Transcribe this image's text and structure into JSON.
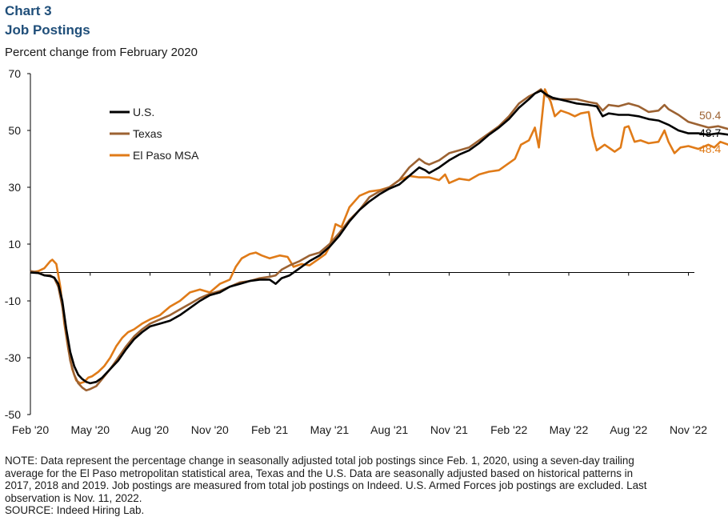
{
  "header": {
    "chart_label": "Chart 3",
    "title": "Job Postings",
    "subtitle": "Percent change from February 2020"
  },
  "chart_data": {
    "type": "line",
    "title": "Job Postings",
    "subtitle": "Percent change from February 2020",
    "xlabel": "",
    "ylabel": "",
    "ylim": [
      -50,
      70
    ],
    "y_ticks": [
      -50,
      -30,
      -10,
      10,
      30,
      50,
      70
    ],
    "x_tick_labels": [
      "Feb '20",
      "May '20",
      "Aug '20",
      "Nov '20",
      "Feb '21",
      "May '21",
      "Aug '21",
      "Nov '21",
      "Feb '22",
      "May '22",
      "Aug '22",
      "Nov '22"
    ],
    "x_range_months": [
      0,
      33.3
    ],
    "legend_position": "upper-left",
    "colors": {
      "us": "#000000",
      "texas": "#9c6232",
      "el_paso": "#e07b18",
      "axis": "#000000"
    },
    "series": [
      {
        "name": "U.S.",
        "key": "us",
        "end_label": "48.7",
        "points": [
          [
            0,
            0
          ],
          [
            0.4,
            -0.2
          ],
          [
            0.7,
            -1
          ],
          [
            1.0,
            -1.3
          ],
          [
            1.2,
            -1.8
          ],
          [
            1.4,
            -4
          ],
          [
            1.6,
            -10
          ],
          [
            1.8,
            -20
          ],
          [
            2.0,
            -28
          ],
          [
            2.2,
            -33
          ],
          [
            2.4,
            -36
          ],
          [
            2.6,
            -37.5
          ],
          [
            2.8,
            -38.5
          ],
          [
            3.0,
            -39
          ],
          [
            3.3,
            -38.5
          ],
          [
            3.6,
            -37
          ],
          [
            4.0,
            -34
          ],
          [
            4.4,
            -31
          ],
          [
            4.8,
            -27
          ],
          [
            5.2,
            -23.5
          ],
          [
            5.6,
            -21
          ],
          [
            6.0,
            -19
          ],
          [
            6.5,
            -18
          ],
          [
            7.0,
            -17
          ],
          [
            7.5,
            -15
          ],
          [
            8.0,
            -12.5
          ],
          [
            8.5,
            -10
          ],
          [
            9.0,
            -8
          ],
          [
            9.5,
            -7
          ],
          [
            10.0,
            -5
          ],
          [
            10.5,
            -4
          ],
          [
            11.0,
            -3
          ],
          [
            11.5,
            -2.5
          ],
          [
            12.0,
            -2.5
          ],
          [
            12.3,
            -4
          ],
          [
            12.6,
            -2
          ],
          [
            13.0,
            -1
          ],
          [
            13.5,
            1.5
          ],
          [
            14.0,
            4
          ],
          [
            14.5,
            6
          ],
          [
            15.0,
            9
          ],
          [
            15.5,
            13
          ],
          [
            16.0,
            18
          ],
          [
            16.5,
            22
          ],
          [
            17.0,
            25
          ],
          [
            17.5,
            27.5
          ],
          [
            18.0,
            29.5
          ],
          [
            18.5,
            31
          ],
          [
            19.0,
            34
          ],
          [
            19.5,
            37
          ],
          [
            19.8,
            36
          ],
          [
            20.0,
            35
          ],
          [
            20.5,
            37
          ],
          [
            21.0,
            39.5
          ],
          [
            21.5,
            41.5
          ],
          [
            22.0,
            43
          ],
          [
            22.5,
            45.5
          ],
          [
            23.0,
            48.5
          ],
          [
            23.5,
            51
          ],
          [
            24.0,
            54
          ],
          [
            24.5,
            58
          ],
          [
            25.0,
            61
          ],
          [
            25.3,
            63
          ],
          [
            25.6,
            64
          ],
          [
            25.9,
            62.5
          ],
          [
            26.2,
            61.5
          ],
          [
            26.8,
            60.5
          ],
          [
            27.4,
            59.5
          ],
          [
            28.0,
            59
          ],
          [
            28.4,
            58.5
          ],
          [
            28.7,
            55
          ],
          [
            29.0,
            56
          ],
          [
            29.5,
            55.5
          ],
          [
            30.0,
            55.5
          ],
          [
            30.5,
            55
          ],
          [
            31.0,
            54
          ],
          [
            31.5,
            53.5
          ],
          [
            32.0,
            52
          ],
          [
            32.5,
            50
          ],
          [
            33.0,
            49
          ],
          [
            33.5,
            49
          ],
          [
            34.0,
            48.5
          ],
          [
            34.5,
            49
          ],
          [
            35.0,
            48.5
          ],
          [
            35.3,
            48.7
          ]
        ]
      },
      {
        "name": "Texas",
        "key": "texas",
        "end_label": "50.4",
        "points": [
          [
            0,
            0.5
          ],
          [
            0.4,
            0
          ],
          [
            0.7,
            -1
          ],
          [
            1.0,
            -1
          ],
          [
            1.2,
            -2
          ],
          [
            1.4,
            -5
          ],
          [
            1.6,
            -12
          ],
          [
            1.8,
            -22
          ],
          [
            2.0,
            -31
          ],
          [
            2.2,
            -36
          ],
          [
            2.4,
            -39
          ],
          [
            2.6,
            -40.5
          ],
          [
            2.8,
            -41.5
          ],
          [
            3.0,
            -41
          ],
          [
            3.3,
            -40
          ],
          [
            3.6,
            -37.5
          ],
          [
            4.0,
            -34
          ],
          [
            4.4,
            -30
          ],
          [
            4.8,
            -26
          ],
          [
            5.2,
            -22.5
          ],
          [
            5.6,
            -20
          ],
          [
            6.0,
            -18
          ],
          [
            6.5,
            -16.5
          ],
          [
            7.0,
            -15
          ],
          [
            7.5,
            -13
          ],
          [
            8.0,
            -11
          ],
          [
            8.5,
            -9
          ],
          [
            9.0,
            -7.5
          ],
          [
            9.5,
            -6.5
          ],
          [
            10.0,
            -5
          ],
          [
            10.5,
            -3.5
          ],
          [
            11.0,
            -3
          ],
          [
            11.5,
            -2
          ],
          [
            12.0,
            -1.5
          ],
          [
            12.3,
            -1
          ],
          [
            12.6,
            1
          ],
          [
            13.0,
            2.5
          ],
          [
            13.5,
            4
          ],
          [
            14.0,
            6
          ],
          [
            14.5,
            7
          ],
          [
            15.0,
            10
          ],
          [
            15.5,
            14
          ],
          [
            16.0,
            18.5
          ],
          [
            16.5,
            22
          ],
          [
            17.0,
            26.5
          ],
          [
            17.5,
            28.5
          ],
          [
            18.0,
            30
          ],
          [
            18.5,
            32.5
          ],
          [
            19.0,
            37
          ],
          [
            19.5,
            40
          ],
          [
            19.8,
            38.5
          ],
          [
            20.0,
            38
          ],
          [
            20.5,
            39.5
          ],
          [
            21.0,
            42
          ],
          [
            21.5,
            43
          ],
          [
            22.0,
            44
          ],
          [
            22.5,
            46.5
          ],
          [
            23.0,
            49
          ],
          [
            23.5,
            51.5
          ],
          [
            24.0,
            55
          ],
          [
            24.5,
            59.5
          ],
          [
            25.0,
            62
          ],
          [
            25.3,
            63
          ],
          [
            25.6,
            64.5
          ],
          [
            25.9,
            62
          ],
          [
            26.2,
            61
          ],
          [
            26.8,
            61
          ],
          [
            27.4,
            61
          ],
          [
            28.0,
            60
          ],
          [
            28.4,
            59.5
          ],
          [
            28.7,
            57
          ],
          [
            29.0,
            59
          ],
          [
            29.5,
            58.5
          ],
          [
            30.0,
            59.5
          ],
          [
            30.5,
            58.5
          ],
          [
            31.0,
            56.5
          ],
          [
            31.5,
            57
          ],
          [
            31.8,
            59
          ],
          [
            32.0,
            57.5
          ],
          [
            32.5,
            55.5
          ],
          [
            33.0,
            53
          ],
          [
            33.5,
            52
          ],
          [
            34.0,
            51
          ],
          [
            34.5,
            51.5
          ],
          [
            35.0,
            50.5
          ],
          [
            35.3,
            50.4
          ]
        ]
      },
      {
        "name": "El Paso MSA",
        "key": "el_paso",
        "end_label": "48.4",
        "points": [
          [
            0,
            0
          ],
          [
            0.4,
            0.5
          ],
          [
            0.7,
            1.5
          ],
          [
            1.0,
            4
          ],
          [
            1.1,
            4.5
          ],
          [
            1.3,
            3
          ],
          [
            1.5,
            -5
          ],
          [
            1.7,
            -18
          ],
          [
            1.9,
            -27
          ],
          [
            2.1,
            -34
          ],
          [
            2.3,
            -38
          ],
          [
            2.5,
            -39
          ],
          [
            2.7,
            -38.5
          ],
          [
            2.9,
            -37
          ],
          [
            3.1,
            -36.5
          ],
          [
            3.4,
            -35
          ],
          [
            3.7,
            -33
          ],
          [
            4.0,
            -30
          ],
          [
            4.3,
            -26
          ],
          [
            4.6,
            -23
          ],
          [
            4.9,
            -21
          ],
          [
            5.2,
            -20
          ],
          [
            5.6,
            -18
          ],
          [
            6.0,
            -16.5
          ],
          [
            6.5,
            -15
          ],
          [
            7.0,
            -12
          ],
          [
            7.5,
            -10
          ],
          [
            8.0,
            -7
          ],
          [
            8.5,
            -6
          ],
          [
            9.0,
            -7
          ],
          [
            9.5,
            -4
          ],
          [
            10.0,
            -2.5
          ],
          [
            10.3,
            2
          ],
          [
            10.6,
            5
          ],
          [
            11.0,
            6.5
          ],
          [
            11.3,
            7
          ],
          [
            11.6,
            6
          ],
          [
            12.0,
            5
          ],
          [
            12.5,
            6
          ],
          [
            12.9,
            5.5
          ],
          [
            13.2,
            2
          ],
          [
            13.6,
            3
          ],
          [
            14.0,
            2.5
          ],
          [
            14.5,
            5
          ],
          [
            14.8,
            6.5
          ],
          [
            15.0,
            9
          ],
          [
            15.3,
            17
          ],
          [
            15.6,
            16
          ],
          [
            16.0,
            23
          ],
          [
            16.5,
            27
          ],
          [
            17.0,
            28.5
          ],
          [
            17.5,
            29
          ],
          [
            18.0,
            30
          ],
          [
            18.5,
            32.5
          ],
          [
            19.0,
            34
          ],
          [
            19.5,
            33.5
          ],
          [
            20.0,
            33.5
          ],
          [
            20.5,
            32.5
          ],
          [
            20.8,
            34.5
          ],
          [
            21.0,
            31.5
          ],
          [
            21.5,
            33
          ],
          [
            22.0,
            32.5
          ],
          [
            22.5,
            34.5
          ],
          [
            23.0,
            35.5
          ],
          [
            23.5,
            36
          ],
          [
            24.0,
            38.5
          ],
          [
            24.3,
            40
          ],
          [
            24.6,
            45
          ],
          [
            25.0,
            46.5
          ],
          [
            25.3,
            51
          ],
          [
            25.5,
            44
          ],
          [
            25.8,
            64.5
          ],
          [
            26.1,
            60
          ],
          [
            26.3,
            55
          ],
          [
            26.6,
            57
          ],
          [
            27.0,
            56
          ],
          [
            27.3,
            55
          ],
          [
            27.6,
            56
          ],
          [
            28.0,
            56.5
          ],
          [
            28.2,
            48
          ],
          [
            28.4,
            43
          ],
          [
            28.8,
            45
          ],
          [
            29.0,
            44
          ],
          [
            29.3,
            42.5
          ],
          [
            29.6,
            44
          ],
          [
            29.8,
            51
          ],
          [
            30.0,
            51.5
          ],
          [
            30.3,
            46
          ],
          [
            30.6,
            46.5
          ],
          [
            31.0,
            45.5
          ],
          [
            31.5,
            46
          ],
          [
            31.8,
            50
          ],
          [
            32.0,
            46
          ],
          [
            32.3,
            42
          ],
          [
            32.6,
            44
          ],
          [
            33.0,
            44.5
          ],
          [
            33.5,
            43.5
          ],
          [
            34.0,
            45
          ],
          [
            34.3,
            44
          ],
          [
            34.6,
            46
          ],
          [
            35.0,
            45
          ],
          [
            35.2,
            47
          ],
          [
            35.3,
            48.4
          ]
        ]
      }
    ]
  },
  "footnotes": {
    "note_1": "NOTE: Data represent the percentage change in seasonally adjusted total job postings since Feb. 1, 2020, using a seven-day trailing",
    "note_2": "average for the El Paso metropolitan statistical area, Texas and the U.S. Data are seasonally adjusted based on historical patterns in",
    "note_3": "2017, 2018 and 2019. Job postings are measured from total job postings on Indeed. U.S. Armed Forces job postings are excluded. Last",
    "note_4": "observation is Nov. 11, 2022.",
    "source": "SOURCE: Indeed Hiring Lab."
  }
}
